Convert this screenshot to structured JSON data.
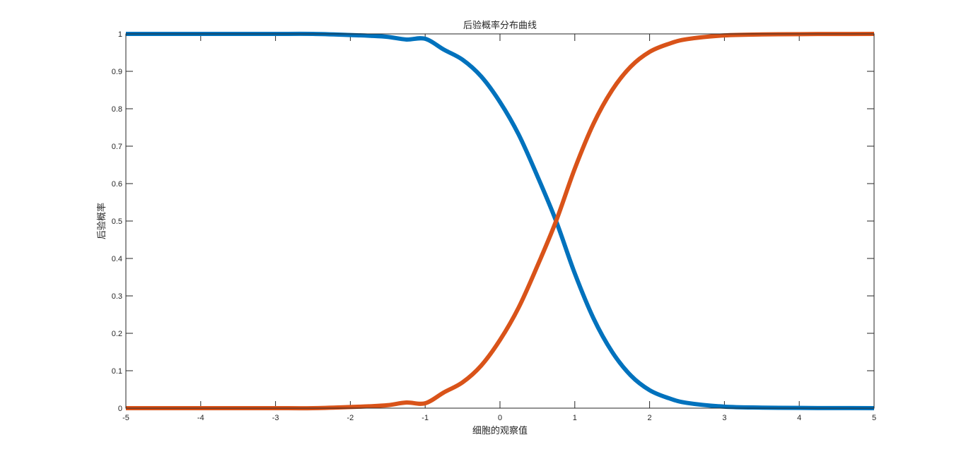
{
  "chart_data": {
    "type": "line",
    "title": "后验概率分布曲线",
    "xlabel": "细胞的观察值",
    "ylabel": "后验概率",
    "xlim": [
      -5,
      5
    ],
    "ylim": [
      0,
      1
    ],
    "xticks": [
      "-5",
      "-4",
      "-3",
      "-2",
      "-1",
      "0",
      "1",
      "2",
      "3",
      "4",
      "5"
    ],
    "yticks": [
      "0",
      "0.1",
      "0.2",
      "0.3",
      "0.4",
      "0.5",
      "0.6",
      "0.7",
      "0.8",
      "0.9",
      "1"
    ],
    "grid": false,
    "x": [
      -5,
      -4.5,
      -4,
      -3.5,
      -3,
      -2.5,
      -2,
      -1.75,
      -1.5,
      -1.25,
      -1,
      -0.75,
      -0.5,
      -0.25,
      0,
      0.25,
      0.5,
      0.75,
      1,
      1.25,
      1.5,
      1.75,
      2,
      2.25,
      2.5,
      3,
      3.5,
      4,
      4.5,
      5
    ],
    "series": [
      {
        "color": "#0072BD",
        "values": [
          1,
          1,
          1,
          1,
          1,
          1,
          0.997,
          0.995,
          0.992,
          0.985,
          0.987,
          0.958,
          0.931,
          0.886,
          0.818,
          0.731,
          0.62,
          0.5,
          0.36,
          0.24,
          0.15,
          0.087,
          0.048,
          0.027,
          0.014,
          0.004,
          0.0015,
          0.0006,
          0.0002,
          0.0001
        ]
      },
      {
        "color": "#D95319",
        "values": [
          0,
          0,
          0,
          0,
          0,
          0,
          0.003,
          0.005,
          0.008,
          0.015,
          0.013,
          0.042,
          0.069,
          0.114,
          0.182,
          0.269,
          0.38,
          0.5,
          0.64,
          0.76,
          0.85,
          0.913,
          0.952,
          0.973,
          0.986,
          0.996,
          0.9985,
          0.9994,
          0.9998,
          0.9999
        ]
      }
    ]
  }
}
